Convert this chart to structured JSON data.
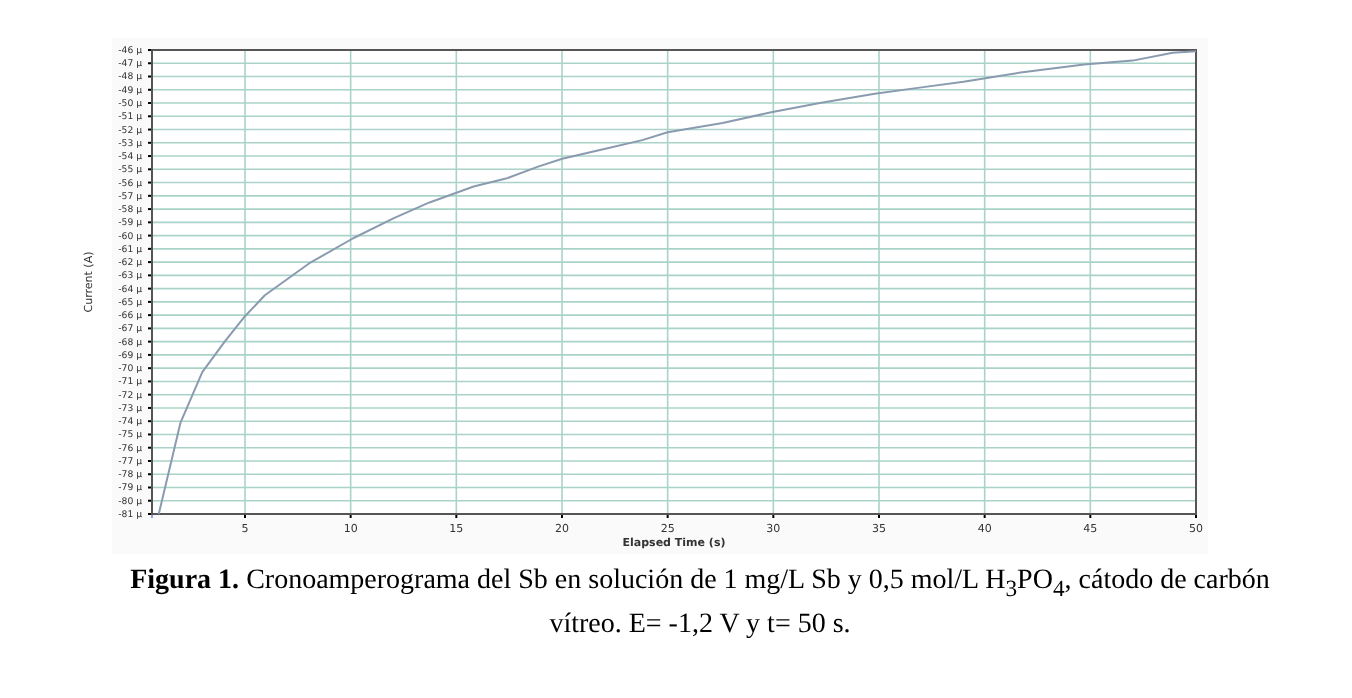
{
  "chart_data": {
    "type": "line",
    "xlabel": "Elapsed Time (s)",
    "ylabel": "Current (A)",
    "annotations": [
      "Figura 1.",
      "Cronoamperograma del Sb en solución de 1 mg/L Sb y 0,5 mol/L H$_{3}$PO$_{4}$, cátodo de carbón vítreo. E= -1,2 V y t= 50 s."
    ],
    "x": [
      0.92,
      1.95,
      2.98,
      4.04,
      4.99,
      5.94,
      8.03,
      10.12,
      12.02,
      13.73,
      15.82,
      17.35,
      18.87,
      20.01,
      21.9,
      23.8,
      25.0,
      27.6,
      29.9,
      32.2,
      34.8,
      37.1,
      39.0,
      41.7,
      44.7,
      47.0,
      48.9,
      50
    ],
    "series": [
      {
        "color": "#8a9bb0",
        "values": [
          -81,
          -74.1,
          -70.3,
          -68.0,
          -66.1,
          -64.5,
          -62.1,
          -60.2,
          -58.7,
          -57.5,
          -56.3,
          -55.7,
          -54.8,
          -54.2,
          -53.5,
          -52.8,
          -52.2,
          -51.5,
          -50.7,
          -50.0,
          -49.3,
          -48.8,
          -48.4,
          -47.7,
          -47.1,
          -46.8,
          -46.2,
          -46.1
        ]
      }
    ],
    "xlim": [
      0.6,
      50
    ],
    "xticks": [
      5,
      10,
      15,
      20,
      25,
      30,
      35,
      40,
      45,
      50
    ],
    "ylim": [
      -81,
      -46
    ],
    "yticks": [
      {
        "value": -46,
        "label": "-46 µ"
      },
      {
        "value": -47,
        "label": "-47 µ"
      },
      {
        "value": -48,
        "label": "-48 µ"
      },
      {
        "value": -49,
        "label": "-49 µ"
      },
      {
        "value": -50,
        "label": "-50 µ"
      },
      {
        "value": -51,
        "label": "-51 µ"
      },
      {
        "value": -52,
        "label": "-52 µ"
      },
      {
        "value": -53,
        "label": "-53 µ"
      },
      {
        "value": -54,
        "label": "-54 µ"
      },
      {
        "value": -55,
        "label": "-55 µ"
      },
      {
        "value": -56,
        "label": "-56 µ"
      },
      {
        "value": -57,
        "label": "-57 µ"
      },
      {
        "value": -58,
        "label": "-58 µ"
      },
      {
        "value": -59,
        "label": "-59 µ"
      },
      {
        "value": -60,
        "label": "-60 µ"
      },
      {
        "value": -61,
        "label": "-61 µ"
      },
      {
        "value": -62,
        "label": "-62 µ"
      },
      {
        "value": -63,
        "label": "-63 µ"
      },
      {
        "value": -64,
        "label": "-64 µ"
      },
      {
        "value": -65,
        "label": "-65 µ"
      },
      {
        "value": -66,
        "label": "-66 µ"
      },
      {
        "value": -67,
        "label": "-67 µ"
      },
      {
        "value": -68,
        "label": "-68 µ"
      },
      {
        "value": -69,
        "label": "-69 µ"
      },
      {
        "value": -70,
        "label": "-70 µ"
      },
      {
        "value": -71,
        "label": "-71 µ"
      },
      {
        "value": -72,
        "label": "-72 µ"
      },
      {
        "value": -73,
        "label": "-73 µ"
      },
      {
        "value": -74,
        "label": "-74 µ"
      },
      {
        "value": -75,
        "label": "-75 µ"
      },
      {
        "value": -76,
        "label": "-76 µ"
      },
      {
        "value": -77,
        "label": "-77 µ"
      },
      {
        "value": -78,
        "label": "-78 µ"
      },
      {
        "value": -79,
        "label": "-79 µ"
      },
      {
        "value": -80,
        "label": "-80 µ"
      },
      {
        "value": -81,
        "label": "-81 µ"
      }
    ],
    "grid": true,
    "line_style": "solid"
  }
}
